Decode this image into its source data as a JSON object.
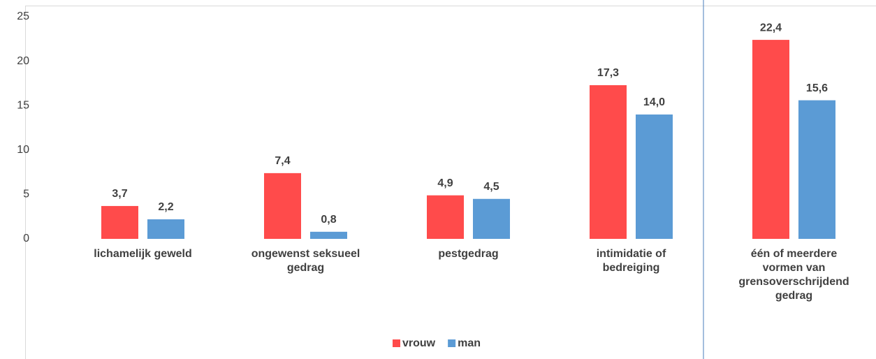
{
  "chart_data": {
    "type": "bar",
    "categories": [
      "lichamelijk geweld",
      "ongewenst seksueel gedrag",
      "pestgedrag",
      "intimidatie of bedreiging",
      "één of meerdere vormen van grensoverschrijdend gedrag"
    ],
    "series": [
      {
        "name": "vrouw",
        "color": "#ff4b4b",
        "values": [
          3.7,
          7.4,
          4.9,
          17.3,
          22.4
        ],
        "value_labels": [
          "3,7",
          "7,4",
          "4,9",
          "17,3",
          "22,4"
        ]
      },
      {
        "name": "man",
        "color": "#5b9bd5",
        "values": [
          2.2,
          0.8,
          4.5,
          14.0,
          15.6
        ],
        "value_labels": [
          "2,2",
          "0,8",
          "4,5",
          "14,0",
          "15,6"
        ]
      }
    ],
    "ylim": [
      0,
      25
    ],
    "yticks": [
      0,
      5,
      10,
      15,
      20,
      25
    ],
    "grid": false,
    "legend": "bottom"
  }
}
